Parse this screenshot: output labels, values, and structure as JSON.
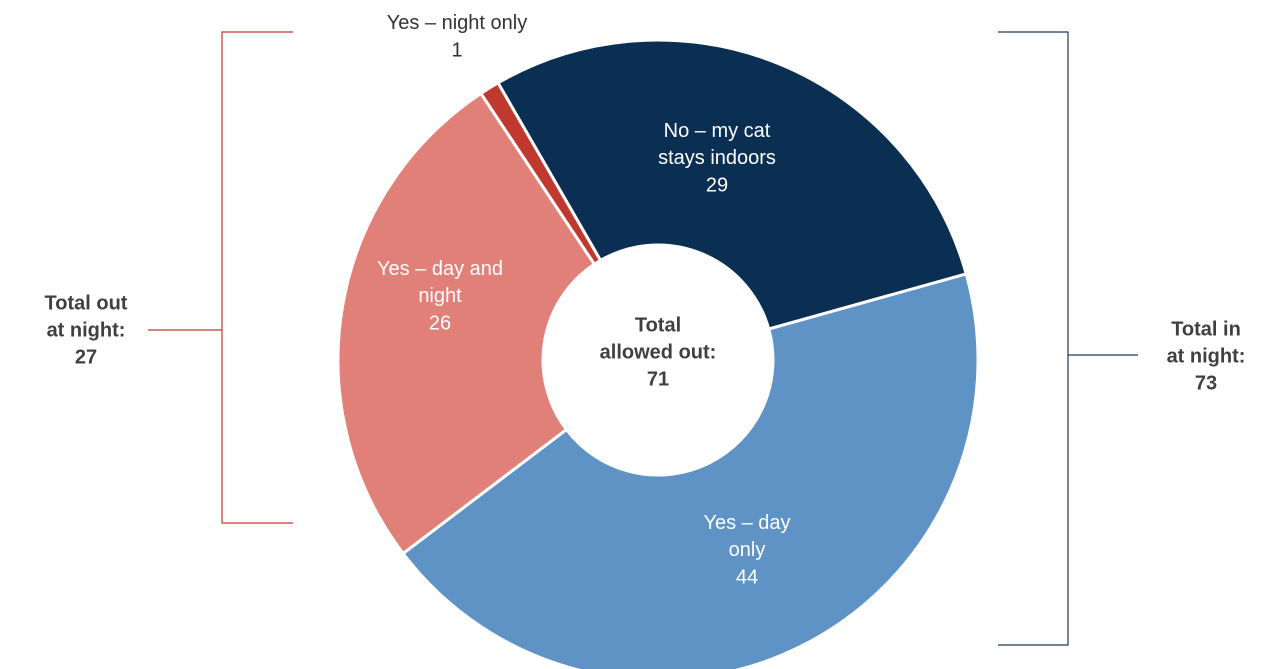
{
  "chart_data": {
    "type": "donut",
    "categories": [
      "No – my cat stays indoors",
      "Yes – day only",
      "Yes – day and night",
      "Yes – night only"
    ],
    "values": [
      29,
      44,
      26,
      1
    ],
    "colors": [
      "#0b2f52",
      "#5f93c6",
      "#e08078",
      "#c0392e"
    ],
    "center_label": [
      "Total",
      "allowed out:",
      "71"
    ],
    "left_label": [
      "Total out",
      "at night:",
      "27"
    ],
    "right_label": [
      "Total in",
      "at night:",
      "73"
    ]
  }
}
